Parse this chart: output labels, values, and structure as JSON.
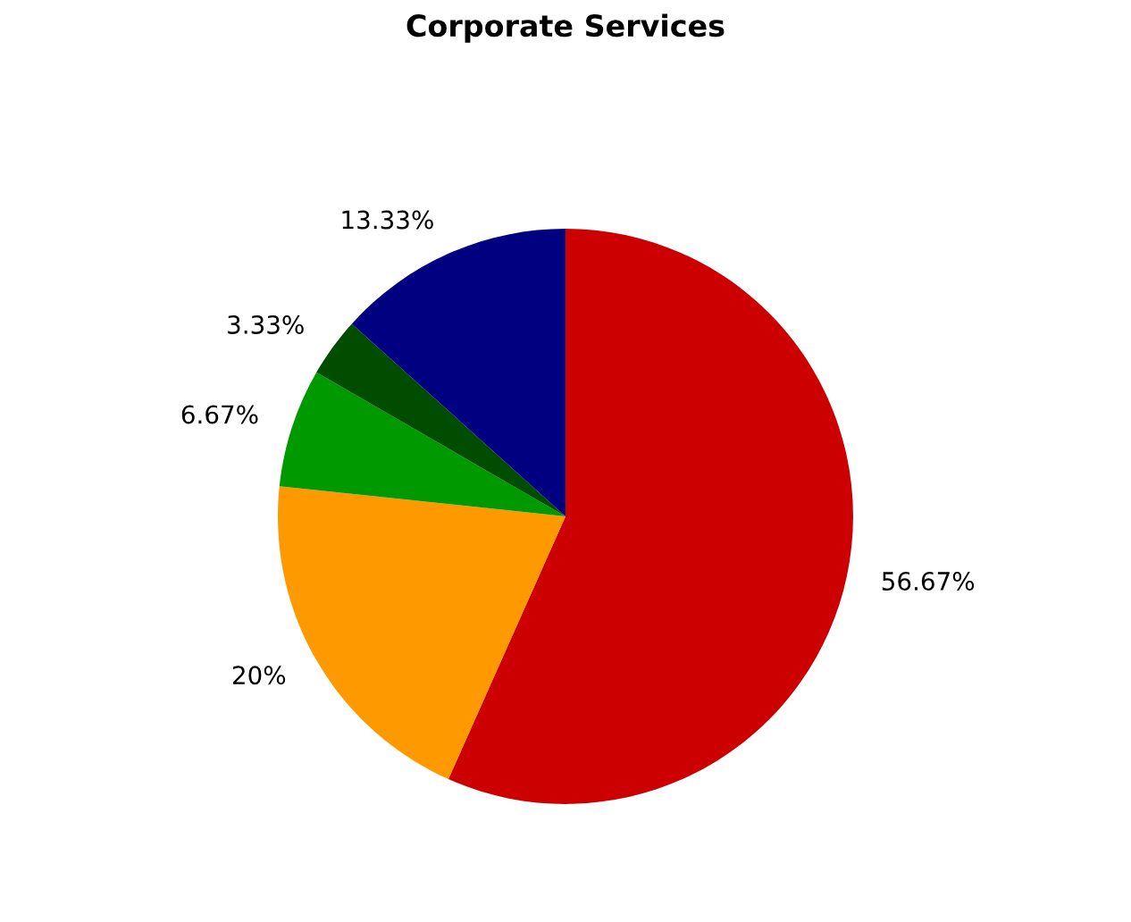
{
  "chart_data": {
    "type": "pie",
    "title": "Corporate Services",
    "categories": [
      null,
      null,
      null,
      null,
      null
    ],
    "values": [
      56.67,
      20,
      6.67,
      3.33,
      13.33
    ],
    "value_labels": [
      "56.67%",
      "20%",
      "6.67%",
      "3.33%",
      "13.33%"
    ],
    "colors": [
      "#cc0000",
      "#ff9900",
      "#009900",
      "#004d00",
      "#000080"
    ]
  }
}
